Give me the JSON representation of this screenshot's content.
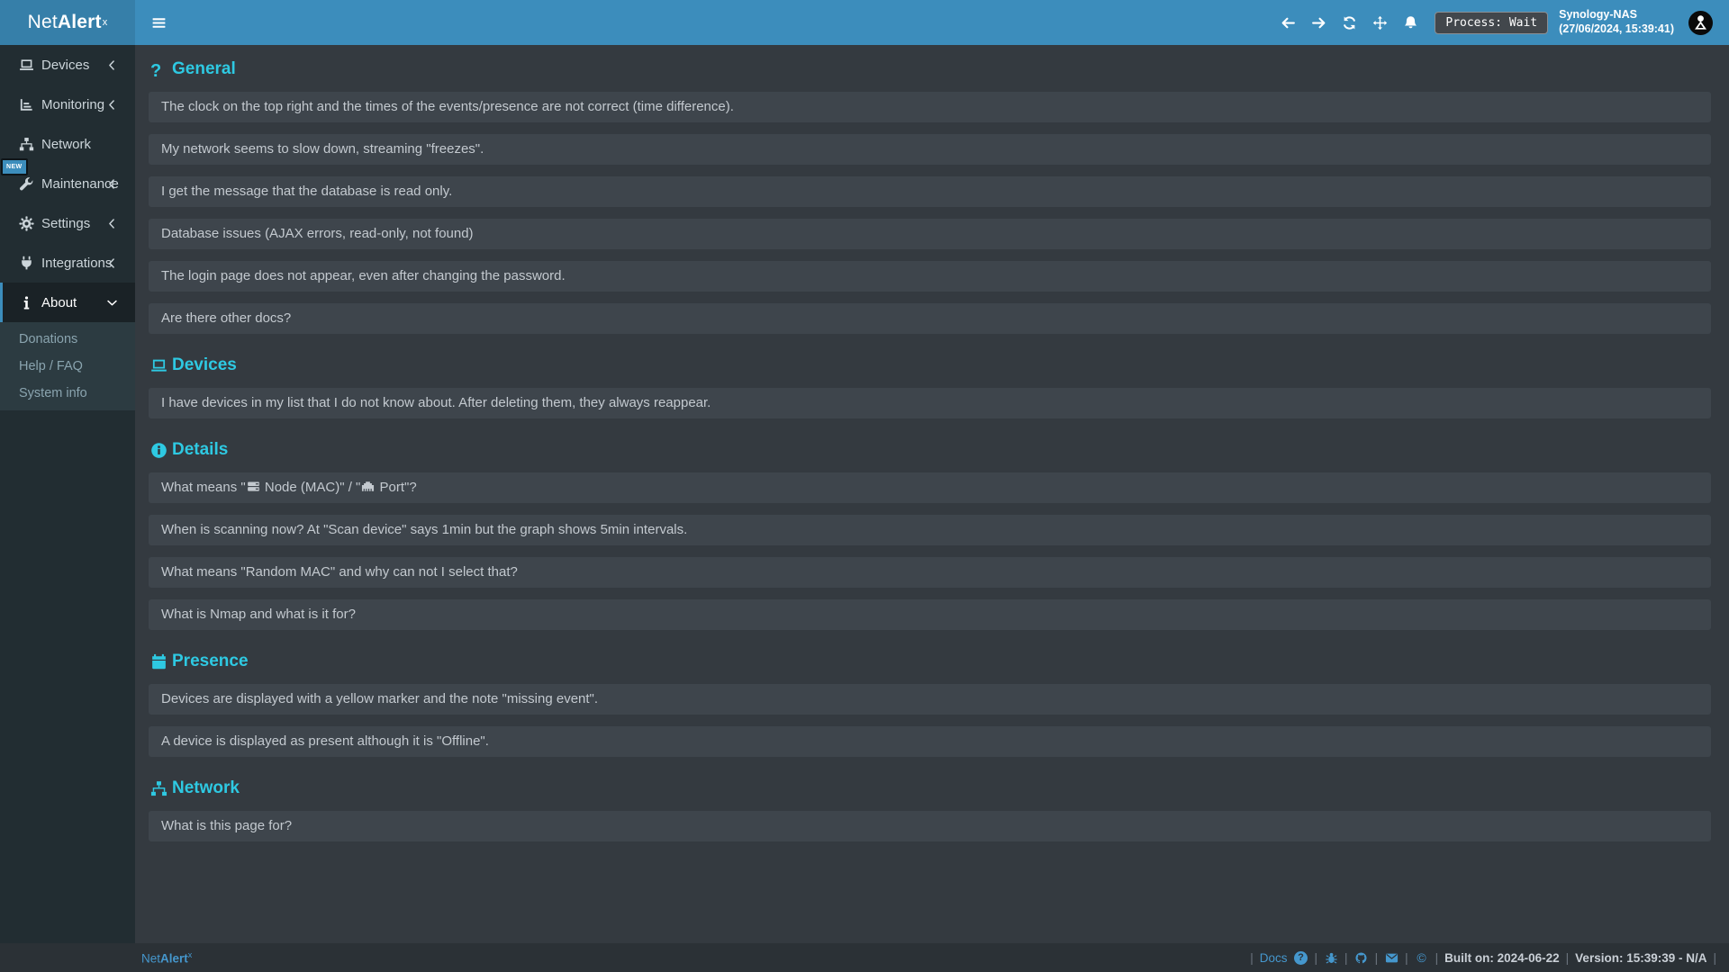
{
  "colors": {
    "accent": "#3c8dbc",
    "logo_bg": "#367fa9",
    "sidebar_bg": "#222d32",
    "content_bg": "#343a40",
    "section_cyan": "#2ec9e2",
    "link_blue": "#4597cd"
  },
  "header": {
    "logo_prefix": "Net",
    "logo_bold": "Alert",
    "logo_sup": "x",
    "nav_icons": [
      {
        "name": "back"
      },
      {
        "name": "forward"
      },
      {
        "name": "refresh"
      },
      {
        "name": "move"
      },
      {
        "name": "bell"
      }
    ],
    "process_badge": "Process: Wait",
    "host": "Synology-NAS",
    "datetime": "(27/06/2024, 15:39:41)"
  },
  "sidebar": {
    "new_badge": "NEW",
    "items": [
      {
        "label": "Devices",
        "icon": "laptop",
        "chevron": "left"
      },
      {
        "label": "Monitoring",
        "icon": "chart",
        "chevron": "left"
      },
      {
        "label": "Network",
        "icon": "sitemap",
        "chevron": "none"
      },
      {
        "label": "Maintenance",
        "icon": "wrench",
        "chevron": "left"
      },
      {
        "label": "Settings",
        "icon": "gear",
        "chevron": "left"
      },
      {
        "label": "Integrations",
        "icon": "plug",
        "chevron": "left"
      },
      {
        "label": "About",
        "icon": "info",
        "chevron": "down",
        "active": true
      }
    ],
    "submenu": [
      "Donations",
      "Help / FAQ",
      "System info"
    ]
  },
  "page": {
    "title": "Help / FAQ"
  },
  "sections": [
    {
      "title": "General",
      "icon": "question",
      "items": [
        "The clock on the top right and the times of the events/presence are not correct (time difference).",
        "My network seems to slow down, streaming \"freezes\".",
        "I get the message that the database is read only.",
        "Database issues (AJAX errors, read-only, not found)",
        "The login page does not appear, even after changing the password.",
        "Are there other docs?"
      ]
    },
    {
      "title": "Devices",
      "icon": "laptop",
      "items": [
        "I have devices in my list that I do not know about. After deleting them, they always reappear."
      ]
    },
    {
      "title": "Details",
      "icon": "info-circle",
      "items": [
        {
          "parts": [
            "What means \"",
            {
              "icon": "server"
            },
            " Node (MAC)\" / \"",
            {
              "icon": "ethernet"
            },
            " Port\"?"
          ]
        },
        "When is scanning now? At \"Scan device\" says 1min but the graph shows 5min intervals.",
        "What means \"Random MAC\" and why can not I select that?",
        "What is Nmap and what is it for?"
      ]
    },
    {
      "title": "Presence",
      "icon": "calendar",
      "items": [
        "Devices are displayed with a yellow marker and the note \"missing event\".",
        "A device is displayed as present although it is \"Offline\"."
      ]
    },
    {
      "title": "Network",
      "icon": "sitemap",
      "items": [
        "What is this page for?"
      ]
    }
  ],
  "footer": {
    "brand_prefix": "Net",
    "brand_bold": "Alert",
    "brand_sup": "x",
    "separator": "|",
    "right": [
      {
        "t": "sep"
      },
      {
        "t": "link",
        "text": "Docs",
        "name": "docs-link"
      },
      {
        "t": "icon",
        "name": "question-circle",
        "interactable": true
      },
      {
        "t": "sep"
      },
      {
        "t": "icon",
        "name": "bug",
        "interactable": true
      },
      {
        "t": "sep"
      },
      {
        "t": "icon",
        "name": "github",
        "interactable": true
      },
      {
        "t": "sep"
      },
      {
        "t": "icon",
        "name": "envelope",
        "interactable": true
      },
      {
        "t": "sep"
      },
      {
        "t": "icon",
        "name": "copyright",
        "interactable": false
      },
      {
        "t": "sep"
      },
      {
        "t": "text",
        "text": "Built on: 2024-06-22"
      },
      {
        "t": "sep"
      },
      {
        "t": "text",
        "text": "Version: 15:39:39 - N/A"
      },
      {
        "t": "sep"
      }
    ]
  }
}
